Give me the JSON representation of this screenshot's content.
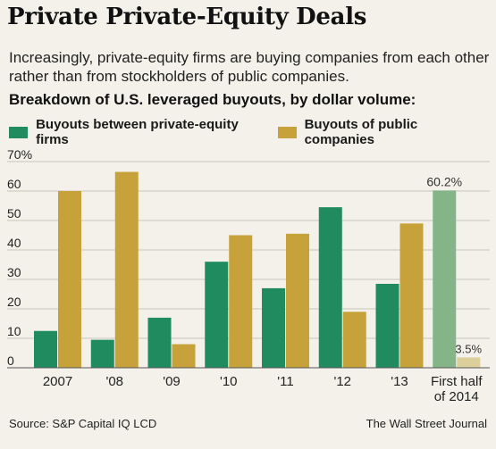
{
  "header": {
    "title": "Private Private-Equity Deals",
    "subtitle": "Increasingly, private-equity firms are buying companies from each other rather than from stockholders of public companies.",
    "chart_heading": "Breakdown of U.S. leveraged buyouts, by dollar volume:"
  },
  "footer": {
    "source": "Source: S&P Capital IQ LCD",
    "credit": "The Wall Street Journal"
  },
  "colors": {
    "green": "#1f8b5e",
    "gold": "#c7a23a",
    "green_highlight": "#84b488",
    "gold_highlight": "#dccf9a",
    "grid": "#c9c6bb",
    "background": "#f3f1ea"
  },
  "chart_data": {
    "type": "bar",
    "categories": [
      "2007",
      "'08",
      "'09",
      "'10",
      "'11",
      "'12",
      "'13",
      "First half|of 2014"
    ],
    "series": [
      {
        "name": "Buyouts between private-equity firms",
        "values": [
          12.5,
          9.5,
          17,
          36,
          27,
          54.5,
          28.5,
          60.2
        ]
      },
      {
        "name": "Buyouts of public companies",
        "values": [
          60,
          66.5,
          8,
          45,
          45.5,
          19,
          49,
          3.5
        ]
      }
    ],
    "highlight_index": 7,
    "data_labels": [
      {
        "series": 0,
        "index": 7,
        "text": "60.2%"
      },
      {
        "series": 1,
        "index": 7,
        "text": "3.5%"
      }
    ],
    "yticks": [
      "70%",
      "60",
      "50",
      "40",
      "30",
      "20",
      "10",
      "0"
    ],
    "ylim": [
      0,
      70
    ],
    "grid": true,
    "legend": "top-left"
  }
}
